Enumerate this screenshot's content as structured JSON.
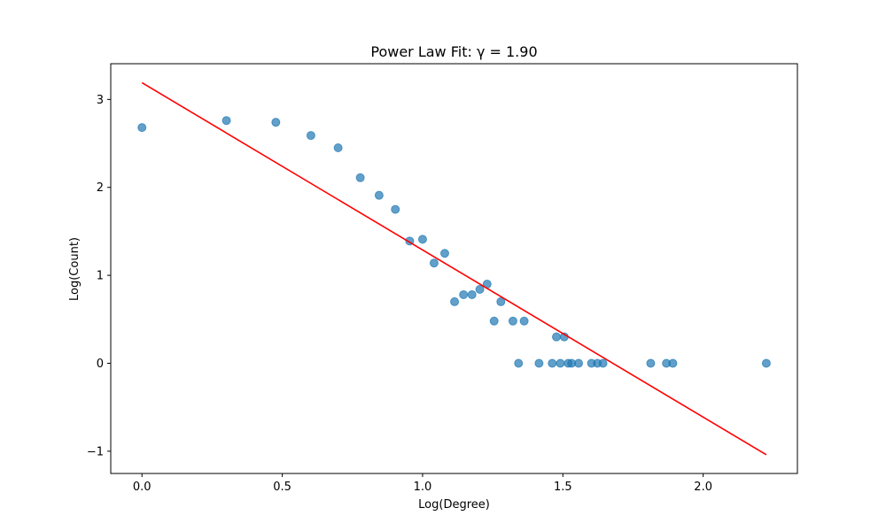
{
  "chart_data": {
    "type": "scatter",
    "title": "Power Law Fit: γ = 1.90",
    "xlabel": "Log(Degree)",
    "ylabel": "Log(Count)",
    "xlim": [
      -0.1113,
      2.3358
    ],
    "ylim": [
      -1.253,
      3.406
    ],
    "xticks": [
      0.0,
      0.5,
      1.0,
      1.5,
      2.0
    ],
    "xtick_labels": [
      "0.0",
      "0.5",
      "1.0",
      "1.5",
      "2.0"
    ],
    "yticks": [
      -1,
      0,
      1,
      2,
      3
    ],
    "ytick_labels": [
      "−1",
      "0",
      "1",
      "2",
      "3"
    ],
    "grid": false,
    "legend": "none",
    "series": [
      {
        "kind": "scatter",
        "color": "#1f77b4",
        "x": [
          0.0,
          0.301,
          0.477,
          0.602,
          0.699,
          0.778,
          0.845,
          0.903,
          0.954,
          1.0,
          1.041,
          1.079,
          1.114,
          1.146,
          1.176,
          1.204,
          1.23,
          1.255,
          1.279,
          1.322,
          1.342,
          1.362,
          1.415,
          1.462,
          1.477,
          1.491,
          1.505,
          1.519,
          1.531,
          1.556,
          1.602,
          1.623,
          1.643,
          1.813,
          1.869,
          1.892,
          2.225
        ],
        "y": [
          2.68,
          2.76,
          2.74,
          2.59,
          2.45,
          2.11,
          1.91,
          1.75,
          1.39,
          1.41,
          1.14,
          1.25,
          0.7,
          0.78,
          0.78,
          0.84,
          0.9,
          0.48,
          0.7,
          0.48,
          0.0,
          0.48,
          0.0,
          0.0,
          0.3,
          0.0,
          0.3,
          0.0,
          0.0,
          0.0,
          0.0,
          0.0,
          0.0,
          0.0,
          0.0,
          0.0,
          0.0
        ]
      },
      {
        "kind": "line",
        "color": "#ff0000",
        "x": [
          0.0,
          2.225
        ],
        "y": [
          3.19,
          -1.04
        ]
      }
    ]
  }
}
